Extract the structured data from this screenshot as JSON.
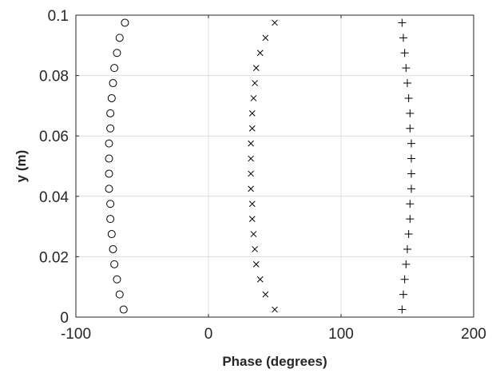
{
  "chart_data": {
    "type": "scatter",
    "xlabel": "Phase (degrees)",
    "ylabel": "y (m)",
    "xlim": [
      -100,
      200
    ],
    "ylim": [
      0,
      0.1
    ],
    "xticks": [
      -100,
      0,
      100,
      200
    ],
    "yticks": [
      0,
      0.02,
      0.04,
      0.06,
      0.08,
      0.1
    ],
    "xtick_labels": [
      "-100",
      "0",
      "100",
      "200"
    ],
    "ytick_labels": [
      "0",
      "0.02",
      "0.04",
      "0.06",
      "0.08",
      "0.1"
    ],
    "grid": true,
    "y": [
      0.0025,
      0.0075,
      0.0125,
      0.0175,
      0.0225,
      0.0275,
      0.0325,
      0.0375,
      0.0425,
      0.0475,
      0.0525,
      0.0575,
      0.0625,
      0.0675,
      0.0725,
      0.0775,
      0.0825,
      0.0875,
      0.0925,
      0.0975
    ],
    "series": [
      {
        "marker": "circle",
        "color": "#000000",
        "x": [
          -64,
          -67,
          -69,
          -71,
          -72,
          -73,
          -74,
          -74,
          -75,
          -75,
          -75,
          -75,
          -74,
          -74,
          -73,
          -72,
          -71,
          -69,
          -67,
          -63
        ]
      },
      {
        "marker": "x",
        "color": "#000000",
        "x": [
          50,
          43,
          39,
          36,
          35,
          34,
          33,
          33,
          32,
          32,
          32,
          32,
          33,
          33,
          34,
          35,
          36,
          39,
          43,
          50
        ]
      },
      {
        "marker": "plus",
        "color": "#000000",
        "x": [
          146,
          147,
          148,
          149,
          150,
          151,
          152,
          152,
          153,
          153,
          153,
          153,
          152,
          152,
          151,
          150,
          149,
          148,
          147,
          146
        ]
      }
    ]
  }
}
